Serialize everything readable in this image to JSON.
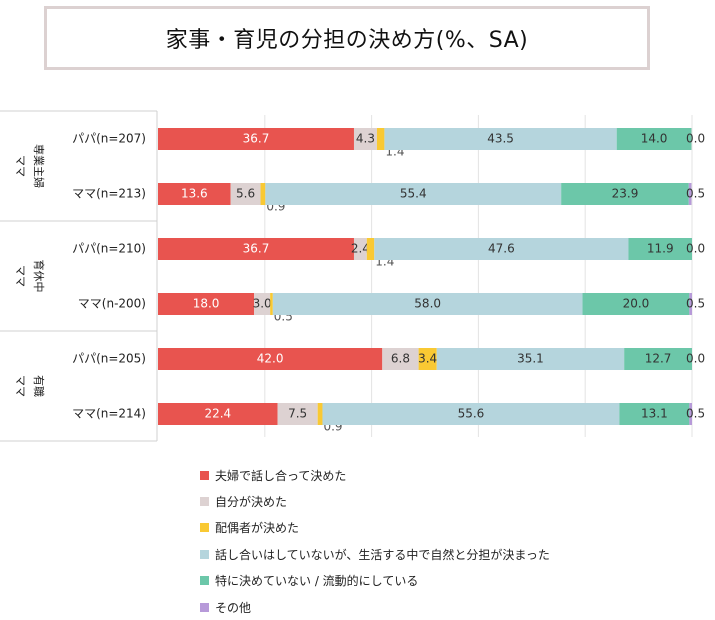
{
  "chart_data": {
    "type": "bar",
    "orientation": "horizontal",
    "stacked": true,
    "title": "家事・育児の分担の決め方(%、SA)",
    "groups": [
      {
        "label": "ママ\n専業主婦",
        "rows": [
          {
            "label": "パパ(n=207)",
            "values": [
              36.7,
              4.3,
              1.4,
              43.5,
              14.0,
              0.0
            ]
          },
          {
            "label": "ママ(n=213)",
            "values": [
              13.6,
              5.6,
              0.9,
              55.4,
              23.9,
              0.5
            ]
          }
        ]
      },
      {
        "label": "ママ\n育休中",
        "rows": [
          {
            "label": "パパ(n=210)",
            "values": [
              36.7,
              2.4,
              1.4,
              47.6,
              11.9,
              0.0
            ]
          },
          {
            "label": "ママ(n-200)",
            "values": [
              18.0,
              3.0,
              0.5,
              58.0,
              20.0,
              0.5
            ]
          }
        ]
      },
      {
        "label": "ママ\n有職",
        "rows": [
          {
            "label": "パパ(n=205)",
            "values": [
              42.0,
              6.8,
              3.4,
              35.1,
              12.7,
              0.0
            ]
          },
          {
            "label": "ママ(n=214)",
            "values": [
              22.4,
              7.5,
              0.9,
              55.6,
              13.1,
              0.5
            ]
          }
        ]
      }
    ],
    "series": [
      {
        "name": "夫婦で話し合って決めた",
        "color": "#e8544f",
        "label_color": "#ffffff"
      },
      {
        "name": "自分が決めた",
        "color": "#ddd2d2",
        "label_color": "#333333"
      },
      {
        "name": "配偶者が決めた",
        "color": "#f9c933",
        "label_color": "#333333"
      },
      {
        "name": "話し合いはしていないが、生活する中で自然と分担が決まった",
        "color": "#b5d5dd",
        "label_color": "#333333"
      },
      {
        "name": "特に決めていない / 流動的にしている",
        "color": "#6cc7a9",
        "label_color": "#333333"
      },
      {
        "name": "その他",
        "color": "#b79ad9",
        "label_color": "#333333"
      }
    ],
    "xlim": [
      0,
      100
    ],
    "grid": true,
    "legend_position": "bottom"
  }
}
